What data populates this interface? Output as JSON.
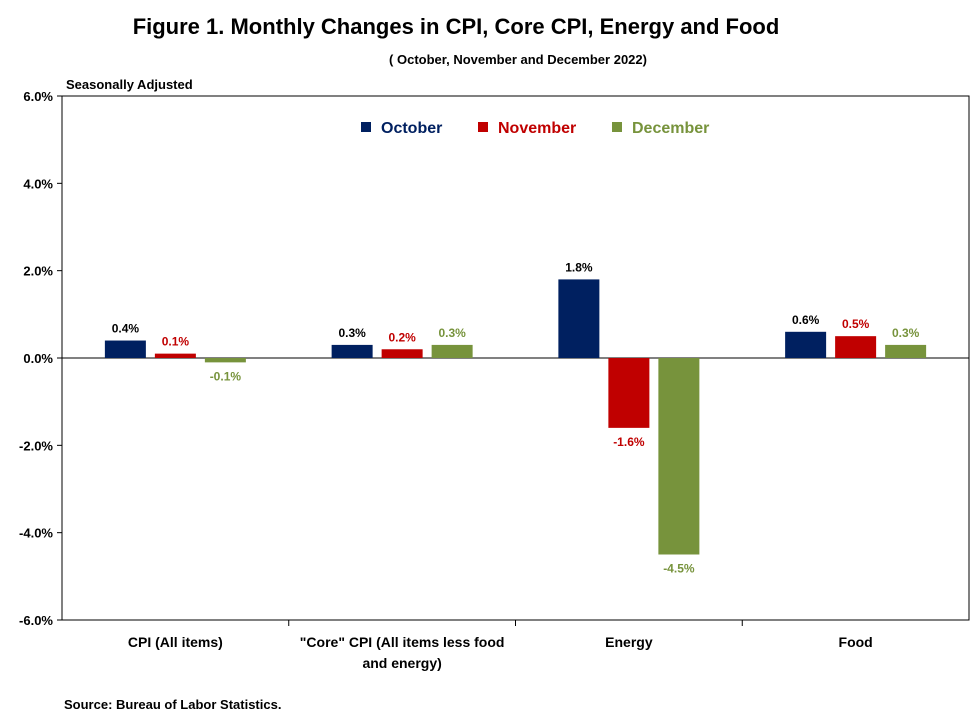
{
  "title": "Figure 1. Monthly Changes in CPI, Core CPI, Energy and Food",
  "subtitle": "( October, November and December 2022)",
  "note": "Seasonally Adjusted",
  "source": "Source: Bureau of Labor Statistics.",
  "chart_data": {
    "type": "bar",
    "categories": [
      [
        "CPI (All items)"
      ],
      [
        "\"Core\" CPI (All items less food",
        "and energy)"
      ],
      [
        "Energy"
      ],
      [
        "Food"
      ]
    ],
    "series": [
      {
        "name": "October",
        "color": "#002060",
        "values": [
          0.4,
          0.3,
          1.8,
          0.6
        ],
        "labels": [
          "0.4%",
          "0.3%",
          "1.8%",
          "0.6%"
        ],
        "label_color": "#000000"
      },
      {
        "name": "November",
        "color": "#C00000",
        "values": [
          0.1,
          0.2,
          -1.6,
          0.5
        ],
        "labels": [
          "0.1%",
          "0.2%",
          "-1.6%",
          "0.5%"
        ],
        "label_color": "#C00000"
      },
      {
        "name": "December",
        "color": "#77933C",
        "values": [
          -0.1,
          0.3,
          -4.5,
          0.3
        ],
        "labels": [
          "-0.1%",
          "0.3%",
          "-4.5%",
          "0.3%"
        ],
        "label_color": "#77933C"
      }
    ],
    "yticks": [
      6,
      4,
      2,
      0,
      -2,
      -4,
      -6
    ],
    "ytick_labels": [
      "6.0%",
      "4.0%",
      "2.0%",
      "0.0%",
      "-2.0%",
      "-4.0%",
      "-6.0%"
    ],
    "ylim": [
      -6,
      6
    ],
    "grid": false,
    "legend_position": "top-center"
  }
}
